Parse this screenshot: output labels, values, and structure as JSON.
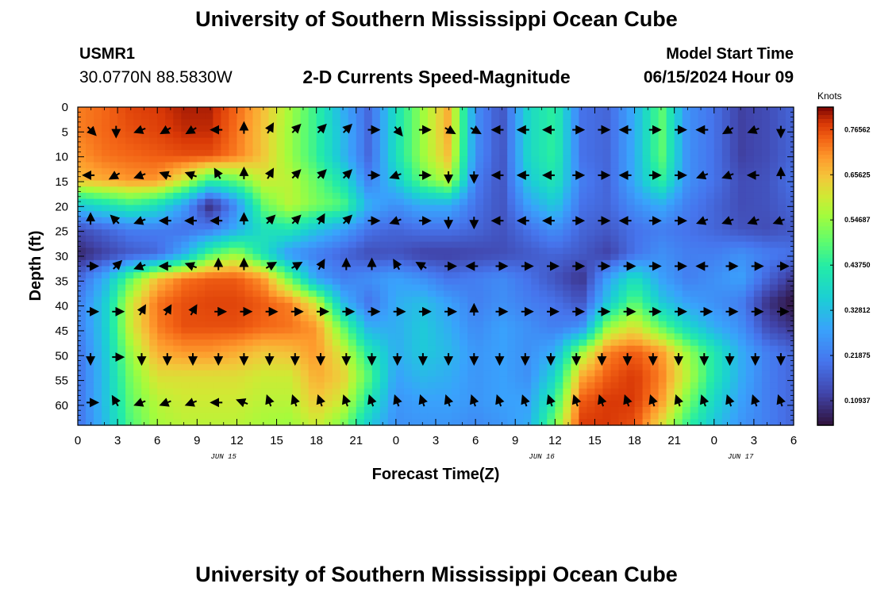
{
  "header": {
    "title": "University of Southern Mississippi Ocean Cube",
    "station_id": "USMR1",
    "coords": "30.0770N  88.5830W",
    "subtitle": "2-D Currents Speed-Magnitude",
    "model_label": "Model Start Time",
    "model_time": "06/15/2024 Hour 09"
  },
  "footer": {
    "title": "University of Southern Mississippi Ocean Cube"
  },
  "chart_data": {
    "type": "heatmap",
    "title": "2-D Currents Speed-Magnitude",
    "xlabel": "Forecast Time(Z)",
    "ylabel": "Depth (ft)",
    "x_range_hours": [
      0,
      54
    ],
    "y_range_ft": [
      0,
      64
    ],
    "x_ticks": [
      "0",
      "3",
      "6",
      "9",
      "12",
      "15",
      "18",
      "21",
      "0",
      "3",
      "6",
      "9",
      "12",
      "15",
      "18",
      "21",
      "0",
      "3",
      "6"
    ],
    "y_ticks": [
      "0",
      "5",
      "10",
      "15",
      "20",
      "25",
      "30",
      "35",
      "40",
      "45",
      "50",
      "55",
      "60"
    ],
    "date_labels": [
      {
        "hour": 11,
        "text": "JUN 15"
      },
      {
        "hour": 35,
        "text": "JUN 16"
      },
      {
        "hour": 50,
        "text": "JUN 17"
      }
    ],
    "colorbar": {
      "units": "Knots",
      "min": 0.05,
      "max": 0.82,
      "tick_labels": [
        "0.10937",
        "0.21875",
        "0.32812",
        "0.43750",
        "0.54687",
        "0.65625",
        "0.76562"
      ],
      "tick_values": [
        0.10937,
        0.21875,
        0.32812,
        0.4375,
        0.54687,
        0.65625,
        0.76562
      ]
    },
    "speed_knots": [
      [
        0.72,
        0.74,
        0.77,
        0.78,
        0.8,
        0.8,
        0.74,
        0.66,
        0.56,
        0.45,
        0.3,
        0.18,
        0.4,
        0.55,
        0.68,
        0.25,
        0.15,
        0.38,
        0.45,
        0.2,
        0.18,
        0.3,
        0.5,
        0.25,
        0.2,
        0.12,
        0.14,
        0.18
      ],
      [
        0.72,
        0.74,
        0.76,
        0.77,
        0.79,
        0.79,
        0.73,
        0.65,
        0.55,
        0.45,
        0.32,
        0.18,
        0.4,
        0.55,
        0.68,
        0.25,
        0.15,
        0.38,
        0.45,
        0.2,
        0.18,
        0.3,
        0.5,
        0.25,
        0.2,
        0.12,
        0.14,
        0.18
      ],
      [
        0.7,
        0.73,
        0.74,
        0.75,
        0.76,
        0.76,
        0.72,
        0.65,
        0.55,
        0.45,
        0.32,
        0.18,
        0.4,
        0.55,
        0.66,
        0.25,
        0.15,
        0.38,
        0.45,
        0.2,
        0.18,
        0.3,
        0.5,
        0.25,
        0.2,
        0.12,
        0.14,
        0.18
      ],
      [
        0.66,
        0.68,
        0.7,
        0.7,
        0.6,
        0.45,
        0.5,
        0.6,
        0.58,
        0.5,
        0.4,
        0.22,
        0.35,
        0.5,
        0.58,
        0.22,
        0.15,
        0.35,
        0.42,
        0.22,
        0.18,
        0.3,
        0.45,
        0.25,
        0.2,
        0.14,
        0.15,
        0.2
      ],
      [
        0.35,
        0.4,
        0.45,
        0.4,
        0.28,
        0.08,
        0.25,
        0.5,
        0.58,
        0.52,
        0.48,
        0.3,
        0.25,
        0.3,
        0.3,
        0.2,
        0.15,
        0.28,
        0.35,
        0.2,
        0.18,
        0.25,
        0.3,
        0.22,
        0.18,
        0.14,
        0.15,
        0.18
      ],
      [
        0.14,
        0.18,
        0.22,
        0.22,
        0.2,
        0.22,
        0.3,
        0.4,
        0.42,
        0.34,
        0.28,
        0.2,
        0.18,
        0.2,
        0.2,
        0.18,
        0.15,
        0.2,
        0.25,
        0.18,
        0.16,
        0.2,
        0.22,
        0.2,
        0.18,
        0.15,
        0.14,
        0.16
      ],
      [
        0.08,
        0.12,
        0.16,
        0.18,
        0.3,
        0.48,
        0.55,
        0.4,
        0.26,
        0.22,
        0.18,
        0.14,
        0.15,
        0.12,
        0.12,
        0.13,
        0.14,
        0.16,
        0.18,
        0.16,
        0.12,
        0.2,
        0.25,
        0.22,
        0.22,
        0.25,
        0.22,
        0.2
      ],
      [
        0.18,
        0.3,
        0.5,
        0.66,
        0.73,
        0.75,
        0.75,
        0.7,
        0.5,
        0.28,
        0.22,
        0.25,
        0.28,
        0.25,
        0.2,
        0.22,
        0.24,
        0.2,
        0.15,
        0.1,
        0.28,
        0.4,
        0.28,
        0.22,
        0.25,
        0.28,
        0.18,
        0.1
      ],
      [
        0.22,
        0.35,
        0.6,
        0.73,
        0.76,
        0.77,
        0.77,
        0.75,
        0.72,
        0.6,
        0.32,
        0.2,
        0.3,
        0.33,
        0.28,
        0.22,
        0.25,
        0.22,
        0.2,
        0.15,
        0.35,
        0.5,
        0.35,
        0.28,
        0.25,
        0.22,
        0.1,
        0.05
      ],
      [
        0.22,
        0.35,
        0.6,
        0.72,
        0.76,
        0.76,
        0.76,
        0.74,
        0.73,
        0.7,
        0.5,
        0.3,
        0.3,
        0.35,
        0.3,
        0.24,
        0.28,
        0.25,
        0.22,
        0.25,
        0.55,
        0.62,
        0.5,
        0.38,
        0.3,
        0.25,
        0.14,
        0.1
      ],
      [
        0.2,
        0.34,
        0.55,
        0.68,
        0.7,
        0.7,
        0.68,
        0.65,
        0.66,
        0.7,
        0.6,
        0.42,
        0.3,
        0.35,
        0.32,
        0.26,
        0.28,
        0.25,
        0.3,
        0.55,
        0.72,
        0.75,
        0.7,
        0.55,
        0.42,
        0.3,
        0.22,
        0.18
      ],
      [
        0.2,
        0.33,
        0.52,
        0.62,
        0.62,
        0.62,
        0.62,
        0.6,
        0.6,
        0.68,
        0.64,
        0.48,
        0.28,
        0.32,
        0.3,
        0.26,
        0.28,
        0.25,
        0.38,
        0.68,
        0.75,
        0.78,
        0.72,
        0.58,
        0.42,
        0.3,
        0.22,
        0.18
      ],
      [
        0.2,
        0.33,
        0.5,
        0.58,
        0.6,
        0.6,
        0.6,
        0.58,
        0.58,
        0.65,
        0.6,
        0.42,
        0.26,
        0.28,
        0.28,
        0.26,
        0.28,
        0.28,
        0.45,
        0.75,
        0.78,
        0.78,
        0.7,
        0.52,
        0.38,
        0.28,
        0.22,
        0.18
      ],
      [
        0.2,
        0.32,
        0.48,
        0.56,
        0.58,
        0.58,
        0.58,
        0.56,
        0.55,
        0.6,
        0.52,
        0.35,
        0.25,
        0.26,
        0.26,
        0.24,
        0.26,
        0.3,
        0.52,
        0.78,
        0.78,
        0.76,
        0.62,
        0.45,
        0.34,
        0.26,
        0.22,
        0.18
      ]
    ],
    "arrows": [
      [
        315,
        270,
        200,
        210,
        210,
        180,
        90,
        60,
        45,
        45,
        45,
        0,
        310,
        0,
        330,
        330,
        180,
        180,
        180,
        0,
        0,
        180,
        0,
        0,
        180,
        210,
        200,
        270
      ],
      [
        180,
        210,
        200,
        160,
        160,
        120,
        90,
        60,
        45,
        45,
        45,
        0,
        200,
        0,
        270,
        270,
        180,
        180,
        180,
        0,
        0,
        180,
        0,
        0,
        200,
        200,
        180,
        90
      ],
      [
        90,
        135,
        200,
        180,
        180,
        180,
        90,
        45,
        45,
        60,
        45,
        0,
        200,
        0,
        270,
        270,
        180,
        180,
        180,
        0,
        0,
        180,
        0,
        0,
        200,
        200,
        200,
        200
      ],
      [
        0,
        45,
        200,
        180,
        160,
        90,
        90,
        30,
        30,
        60,
        90,
        90,
        120,
        150,
        0,
        180,
        0,
        0,
        0,
        0,
        0,
        0,
        0,
        0,
        180,
        0,
        0,
        0
      ],
      [
        0,
        0,
        60,
        60,
        60,
        0,
        0,
        0,
        0,
        0,
        0,
        0,
        0,
        0,
        0,
        90,
        0,
        0,
        0,
        0,
        0,
        0,
        0,
        0,
        0,
        0,
        0,
        0
      ],
      [
        270,
        0,
        270,
        270,
        270,
        270,
        270,
        270,
        270,
        270,
        270,
        270,
        270,
        270,
        270,
        270,
        270,
        270,
        270,
        270,
        270,
        270,
        270,
        270,
        270,
        270,
        270,
        270
      ],
      [
        0,
        120,
        200,
        200,
        200,
        180,
        160,
        110,
        110,
        110,
        110,
        110,
        110,
        110,
        110,
        110,
        110,
        110,
        110,
        110,
        110,
        110,
        110,
        110,
        110,
        110,
        110,
        110
      ]
    ]
  }
}
